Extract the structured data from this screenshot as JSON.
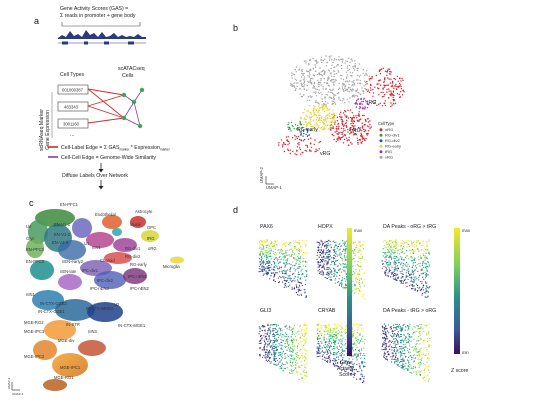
{
  "panels": {
    "a": {
      "letter": "a",
      "gas_line1": "Gene Activity Scores (GAS) =",
      "gas_line2": "Σ reads in promoter + gene body",
      "cell_types_title": "Cell Types",
      "scatac_title_line1": "scATACseq",
      "scatac_title_line2": "Cells",
      "side_label_line1": "scRNAseq Marker",
      "side_label_line2": "Gene Expression",
      "cell_ids": [
        "001000387",
        "483343",
        "3001160"
      ],
      "ellipsis": "...",
      "legend_red": "Cell-Label Edge = Σ GAS",
      "legend_red_sub1": "marker",
      "legend_red_mid": " * Expression",
      "legend_red_sub2": "marker",
      "legend_purple": "Cell-Cell Edge = Genome-Wide Similarity",
      "diffuse": "Diffuse Labels Over Network"
    },
    "b": {
      "letter": "b",
      "labels": [
        "tRG",
        "RG-early",
        "oRG",
        "vRG"
      ],
      "legend_title": "CellType",
      "legend_items": [
        {
          "label": "oRG",
          "color": "#d8202a"
        },
        {
          "label": "RG-div1",
          "color": "#2f9e46"
        },
        {
          "label": "RG-div2",
          "color": "#2b4fb0"
        },
        {
          "label": "RG-early",
          "color": "#e6d53a"
        },
        {
          "label": "tRG",
          "color": "#9a3bb0"
        },
        {
          "label": "vRG",
          "color": "#a6a6a6"
        }
      ],
      "axis_y": "UMAP-2",
      "axis_x": "UMAP-1"
    },
    "c": {
      "letter": "c",
      "labels": [
        "EN-PFC1",
        "Endothelial",
        "Astrocyte",
        "U4",
        "EN-V1-1",
        "Mural",
        "OPC",
        "EN-V1-2",
        "Glyc",
        "U1",
        "tRG",
        "EN-PFC2",
        "RG-div1",
        "EN-V1-3",
        "nIN1",
        "RG-div2",
        "oRG",
        "EN-PFC3",
        "nEN-early2",
        "IPC-div1",
        "Choroid",
        "RG-early",
        "nEN-late",
        "IPC-div2",
        "IPC-nEN1",
        "IPC-nEN3",
        "IPC-nEN2",
        "Microglia",
        "nIN1",
        "IN-CTX-CGE2",
        "IN-CTX-CGE1",
        "IN-CTX-MGE2",
        "U2",
        "MGE-RG2",
        "IN-STR",
        "MGE-IPC3",
        "nIN3",
        "IN-CTX-MGE1",
        "MGE-div",
        "MGE-IPC2",
        "MGE-IPC1",
        "MGE-RG1"
      ],
      "axis_y": "UMAP-2",
      "axis_x": "UMAP-1"
    },
    "d": {
      "letter": "d",
      "maps": [
        "PAX6",
        "HOPX",
        "DA Peaks - oRG > tRG",
        "GLI3",
        "CRYAB",
        "DA Peaks - tRG > oRG"
      ],
      "gas_max": "max",
      "gas_min": "min",
      "gas_label_line1": "Gene",
      "gas_label_line2": "Activity",
      "gas_label_line3": "Score",
      "z_max": "max",
      "z_min": "min",
      "z_label": "Z score"
    }
  },
  "colors": {
    "red_edge": "#d22b2b",
    "purple_edge": "#8a3c9a",
    "viridis_top": "#f7e72a",
    "viridis_mid": "#2b8f8c",
    "viridis_bottom": "#3b0f63"
  }
}
